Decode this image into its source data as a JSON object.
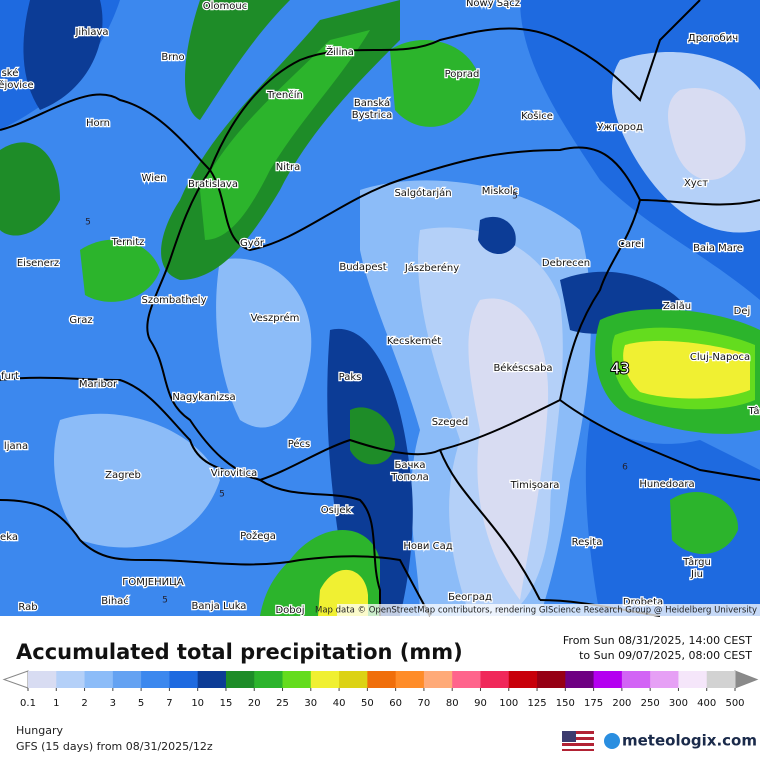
{
  "header": {
    "title": "Accumulated total precipitation (mm)",
    "period_from": "From Sun 08/31/2025, 14:00 CEST",
    "period_to": "to Sun 09/07/2025, 08:00 CEST"
  },
  "footer": {
    "region": "Hungary",
    "model": "GFS (15 days) from 08/31/2025/12z",
    "brand": "meteologix.com"
  },
  "map": {
    "attribution": "Map data © OpenStreetMap contributors, rendering GIScience Research Group @ Heidelberg University",
    "max_label": 43,
    "contour_labels": [
      5,
      5,
      5,
      5,
      6
    ],
    "cities": [
      "Olomouc",
      "Nowy Sącz",
      "Jihlava",
      "Brno",
      "Žilina",
      "Poprad",
      "Дрогобич",
      "Trenčín",
      "Banská",
      "Bystrica",
      "Košice",
      "Ужгород",
      "Horn",
      "Nitra",
      "Wien",
      "Bratislava",
      "Salgótarján",
      "Miskolc",
      "Хуст",
      "Ternitz",
      "Győr",
      "Carei",
      "Baia Mare",
      "Eisenerz",
      "Budapest",
      "Jászberény",
      "Debrecen",
      "Szombathely",
      "Zalău",
      "Graz",
      "Veszprém",
      "Dej",
      "Kecskemét",
      "Cluj-Napoca",
      "Békéscsaba",
      "Paks",
      "Maribor",
      "Nagykanizsa",
      "Szeged",
      "Pécs",
      "Zagreb",
      "Virovitica",
      "Бачка",
      "Топола",
      "Timișoara",
      "Hunedoara",
      "Osijek",
      "Požega",
      "Нови Сад",
      "Reșița",
      "Târgu",
      "Jiu",
      "ГОМЈЕНИЦА",
      "Banja Luka",
      "Bihać",
      "Doboj",
      "Београд",
      "Drobeta",
      "ské",
      "ějovice",
      "furt",
      "ljana",
      "eka",
      "Rab",
      "Tâ"
    ]
  },
  "legend": {
    "ticks": [
      0.1,
      1,
      2,
      3,
      5,
      7,
      10,
      15,
      20,
      25,
      30,
      40,
      50,
      60,
      70,
      80,
      90,
      100,
      125,
      150,
      175,
      200,
      250,
      300,
      400,
      500
    ],
    "colors": [
      "#d8dcf2",
      "#b4d0f8",
      "#8cbcf8",
      "#64a2f2",
      "#3c88ee",
      "#1e6ae0",
      "#0c3c96",
      "#1e8c28",
      "#2cb42c",
      "#64dc1e",
      "#f0f032",
      "#dcd214",
      "#f06e0a",
      "#ff8c28",
      "#ffaa78",
      "#ff648c",
      "#f0285a",
      "#c8000a",
      "#960014",
      "#6e0082",
      "#b400f0",
      "#d264f5",
      "#e6a0f5",
      "#f5e6fa",
      "#d2d2d2"
    ],
    "low_color": "#ffffff",
    "high_color": "#8a8a8a"
  }
}
